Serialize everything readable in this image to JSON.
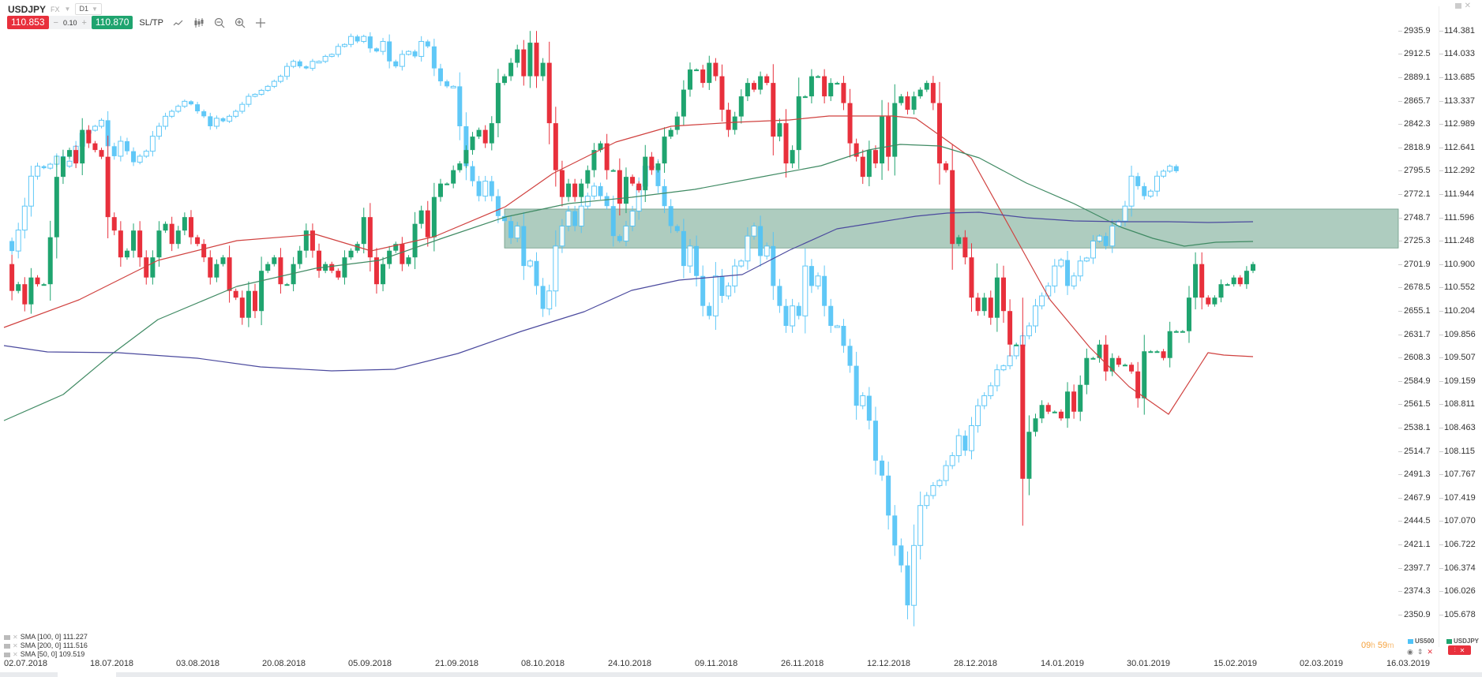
{
  "header": {
    "symbol": "USDJPY",
    "market": "FX",
    "timeframe": "D1",
    "sell_price": "110.853",
    "volume": "0.10",
    "buy_price": "110.870",
    "sltp_label": "SL/TP",
    "minus": "−",
    "plus": "+",
    "tools": [
      "line-chart-icon",
      "candles-icon",
      "zoom-out-icon",
      "zoom-in-icon",
      "crosshair-icon"
    ]
  },
  "legend": [
    {
      "label": "SMA [100, 0] 111.227"
    },
    {
      "label": "SMA [200, 0] 111.516"
    },
    {
      "label": "SMA [50, 0] 109.519"
    }
  ],
  "timer": {
    "hours": "09",
    "h": "h",
    "minutes": "59",
    "m": "m"
  },
  "series_tags": {
    "us500": "US500",
    "usdjpy": "USDJPY"
  },
  "colors": {
    "up": "#1fa46f",
    "down": "#e8303c",
    "overlay": "#4fc3f7",
    "sma50": "#d0413f",
    "sma100": "#3f8a63",
    "sma200": "#4b4a9e",
    "zone": "#8fb8a6"
  },
  "chart_data": {
    "type": "candlestick",
    "title": "USDJPY D1 with US500 overlay",
    "xlabel": "",
    "ylabel": "",
    "x_ticks": [
      "02.07.2018",
      "18.07.2018",
      "03.08.2018",
      "20.08.2018",
      "05.09.2018",
      "21.09.2018",
      "08.10.2018",
      "24.10.2018",
      "09.11.2018",
      "26.11.2018",
      "12.12.2018",
      "28.12.2018",
      "14.01.2019",
      "30.01.2019",
      "15.02.2019",
      "02.03.2019",
      "16.03.2019"
    ],
    "y_right_usdjpy": [
      "114.381",
      "114.033",
      "113.685",
      "113.337",
      "112.989",
      "112.641",
      "112.292",
      "111.944",
      "111.596",
      "111.248",
      "110.900",
      "110.552",
      "110.204",
      "109.856",
      "109.507",
      "109.159",
      "108.811",
      "108.463",
      "108.115",
      "107.767",
      "107.419",
      "107.070",
      "106.722",
      "106.374",
      "106.026",
      "105.678"
    ],
    "y_left_us500": [
      "2935.9",
      "2912.5",
      "2889.1",
      "2865.7",
      "2842.3",
      "2818.9",
      "2795.5",
      "2772.1",
      "2748.7",
      "2725.3",
      "2701.9",
      "2678.5",
      "2655.1",
      "2631.7",
      "2608.3",
      "2584.9",
      "2561.5",
      "2538.1",
      "2514.7",
      "2491.3",
      "2467.9",
      "2444.5",
      "2421.1",
      "2397.7",
      "2374.3",
      "2350.9"
    ],
    "usdjpy_range": [
      105.678,
      114.381
    ],
    "us500_range": [
      2350.9,
      2935.9
    ],
    "zone": {
      "from_usdjpy": 111.14,
      "to_usdjpy": 111.72,
      "start_date": "08.10.2018"
    },
    "series": [
      {
        "name": "USDJPY",
        "closes": [
          110.9,
          110.5,
          110.6,
          110.3,
          110.7,
          110.6,
          110.6,
          111.3,
          112.2,
          112.5,
          112.6,
          112.4,
          112.9,
          112.7,
          112.6,
          112.5,
          111.6,
          111.4,
          111.0,
          111.1,
          111.4,
          111.0,
          110.7,
          111.0,
          111.4,
          111.5,
          111.2,
          111.4,
          111.6,
          111.3,
          111.2,
          111.0,
          110.7,
          110.9,
          111.0,
          110.5,
          110.4,
          110.1,
          110.5,
          110.2,
          110.8,
          110.9,
          111.0,
          110.6,
          110.6,
          110.9,
          111.1,
          111.4,
          111.1,
          110.8,
          110.9,
          110.8,
          110.7,
          111.0,
          111.1,
          111.2,
          111.6,
          111.0,
          110.6,
          110.9,
          111.1,
          111.2,
          110.9,
          111.0,
          111.5,
          111.7,
          111.3,
          111.9,
          112.1,
          112.1,
          112.3,
          112.4,
          112.6,
          112.8,
          112.9,
          112.7,
          113.0,
          113.6,
          113.7,
          113.9,
          114.1,
          113.7,
          114.2,
          113.7,
          113.9,
          113.0,
          112.3,
          111.9,
          112.1,
          111.9,
          112.1,
          112.3,
          112.6,
          112.7,
          112.3,
          112.3,
          111.8,
          112.2,
          112.1,
          112.0,
          112.5,
          112.3,
          112.4,
          112.8,
          112.9,
          113.1,
          113.5,
          113.8,
          113.8,
          113.6,
          113.9,
          113.7,
          113.2,
          112.9,
          113.1,
          113.4,
          113.6,
          113.5,
          113.7,
          113.6,
          112.8,
          113.0,
          112.4,
          112.6,
          113.4,
          113.4,
          113.7,
          113.7,
          113.4,
          113.6,
          113.6,
          113.3,
          112.7,
          112.5,
          112.2,
          112.6,
          112.4,
          113.1,
          112.5,
          113.3,
          113.4,
          113.2,
          113.4,
          113.5,
          113.6,
          113.3,
          112.4,
          112.3,
          111.2,
          111.3,
          111.0,
          110.4,
          110.2,
          110.4,
          110.1,
          110.7,
          110.2,
          109.7,
          109.7,
          107.7,
          108.4,
          108.6,
          108.8,
          108.7,
          108.7,
          108.6,
          109.0,
          108.7,
          109.1,
          109.5,
          109.5,
          109.7,
          109.3,
          109.5,
          109.4,
          109.4,
          109.3,
          108.9,
          109.6,
          109.6,
          109.6,
          109.5,
          109.9,
          109.9,
          109.9,
          110.4,
          110.9,
          110.4,
          110.3,
          110.4,
          110.6,
          110.6,
          110.7,
          110.6,
          110.8,
          110.9
        ]
      },
      {
        "name": "US500",
        "closes": [
          2725,
          2715,
          2736,
          2760,
          2790,
          2800,
          2798,
          2802,
          2810,
          2800,
          2805,
          2820,
          2833,
          2836,
          2840,
          2846,
          2820,
          2810,
          2825,
          2815,
          2804,
          2810,
          2815,
          2830,
          2840,
          2850,
          2855,
          2860,
          2865,
          2862,
          2855,
          2850,
          2840,
          2848,
          2845,
          2850,
          2855,
          2862,
          2870,
          2872,
          2876,
          2880,
          2885,
          2890,
          2900,
          2905,
          2900,
          2898,
          2905,
          2905,
          2910,
          2912,
          2920,
          2922,
          2930,
          2925,
          2930,
          2918,
          2915,
          2925,
          2905,
          2900,
          2912,
          2915,
          2910,
          2925,
          2920,
          2898,
          2885,
          2880,
          2880,
          2840,
          2800,
          2785,
          2770,
          2785,
          2770,
          2750,
          2745,
          2728,
          2740,
          2700,
          2705,
          2680,
          2657,
          2675,
          2720,
          2740,
          2755,
          2740,
          2760,
          2770,
          2780,
          2770,
          2760,
          2730,
          2725,
          2740,
          2755,
          2780,
          2800,
          2800,
          2780,
          2760,
          2740,
          2735,
          2700,
          2720,
          2690,
          2660,
          2650,
          2690,
          2670,
          2680,
          2700,
          2705,
          2730,
          2740,
          2710,
          2720,
          2680,
          2660,
          2640,
          2660,
          2650,
          2700,
          2680,
          2690,
          2660,
          2640,
          2640,
          2620,
          2600,
          2560,
          2570,
          2545,
          2505,
          2490,
          2450,
          2420,
          2400,
          2360,
          2420,
          2460,
          2470,
          2480,
          2485,
          2500,
          2510,
          2530,
          2515,
          2540,
          2560,
          2570,
          2580,
          2596,
          2600,
          2610,
          2620,
          2630,
          2640,
          2660,
          2670,
          2680,
          2700,
          2706,
          2680,
          2690,
          2705,
          2708,
          2725,
          2730,
          2720,
          2740,
          2745,
          2760,
          2790,
          2780,
          2770,
          2775,
          2790,
          2795,
          2800,
          2795
        ]
      }
    ]
  }
}
